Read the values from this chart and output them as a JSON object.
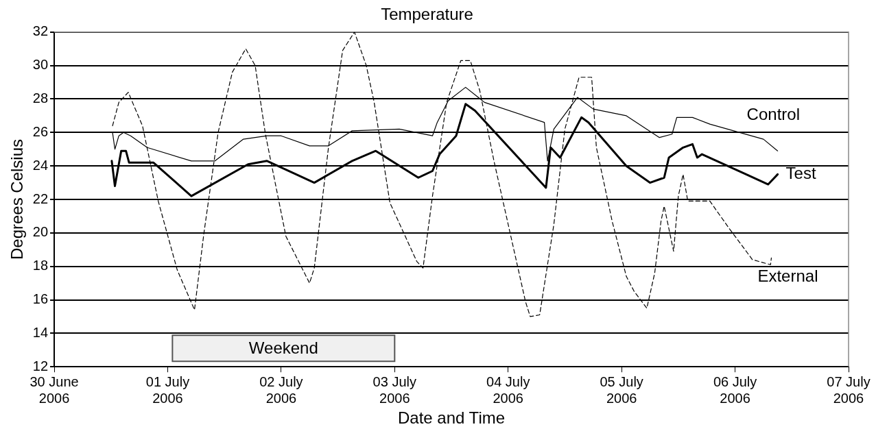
{
  "chart_data": {
    "type": "line",
    "title": "Temperature",
    "xlabel": "Date and Time",
    "ylabel": "Degrees Celsius",
    "xlim": [
      "2006-06-30",
      "2006-07-07"
    ],
    "xticks": [
      {
        "value": "2006-06-30",
        "label": "30 June 2006"
      },
      {
        "value": "2006-07-01",
        "label": "01 July 2006"
      },
      {
        "value": "2006-07-02",
        "label": "02 July 2006"
      },
      {
        "value": "2006-07-03",
        "label": "03 July 2006"
      },
      {
        "value": "2006-07-04",
        "label": "04 July 2006"
      },
      {
        "value": "2006-07-05",
        "label": "05 July 2006"
      },
      {
        "value": "2006-07-06",
        "label": "06 July 2006"
      },
      {
        "value": "2006-07-07",
        "label": "07 July 2006"
      }
    ],
    "ylim": [
      12,
      32
    ],
    "yticks": [
      12,
      14,
      16,
      18,
      20,
      22,
      24,
      26,
      28,
      30,
      32
    ],
    "grid": "y",
    "legend": false,
    "marker": "none",
    "bands": [
      {
        "axis": "x",
        "from": "2006-07-01T01:00",
        "to": "2006-07-03",
        "label": "Weekend",
        "color": "#f0f0f0"
      }
    ],
    "series": [
      {
        "name": "Control",
        "color": "#000000",
        "line_style": "solid",
        "x": [
          "2006-06-30T12:20",
          "2006-06-30T12:50",
          "2006-06-30T13:40",
          "2006-06-30T14:40",
          "2006-06-30T16:10",
          "2006-06-30T19:40",
          "2006-07-01T05:00",
          "2006-07-01T10:00",
          "2006-07-01T16:00",
          "2006-07-01T21:00",
          "2006-07-02T00:00",
          "2006-07-02T06:00",
          "2006-07-02T10:00",
          "2006-07-02T15:00",
          "2006-07-03T01:00",
          "2006-07-03T08:00",
          "2006-07-03T09:00",
          "2006-07-03T11:20",
          "2006-07-03T15:00",
          "2006-07-03T17:40",
          "2006-07-03T19:00",
          "2006-07-04T07:40",
          "2006-07-04T08:20",
          "2006-07-04T09:40",
          "2006-07-04T14:40",
          "2006-07-04T18:00",
          "2006-07-05T01:00",
          "2006-07-05T08:00",
          "2006-07-05T10:40",
          "2006-07-05T11:40",
          "2006-07-05T15:00",
          "2006-07-05T18:40",
          "2006-07-06T06:00",
          "2006-07-06T09:00"
        ],
        "values": [
          26.0,
          25.0,
          25.8,
          26.0,
          25.8,
          25.1,
          24.3,
          24.3,
          25.6,
          25.8,
          25.8,
          25.2,
          25.2,
          26.1,
          26.2,
          25.8,
          26.6,
          27.9,
          28.7,
          28.1,
          27.8,
          26.6,
          24.3,
          26.2,
          28.1,
          27.4,
          27.0,
          25.7,
          25.9,
          26.9,
          26.9,
          26.5,
          25.6,
          24.9
        ]
      },
      {
        "name": "Test",
        "color": "#000000",
        "line_style": "solid",
        "x": [
          "2006-06-30T12:10",
          "2006-06-30T12:50",
          "2006-06-30T14:10",
          "2006-06-30T15:10",
          "2006-06-30T15:50",
          "2006-06-30T21:00",
          "2006-07-01T05:00",
          "2006-07-01T17:00",
          "2006-07-01T21:00",
          "2006-07-02T07:00",
          "2006-07-02T15:00",
          "2006-07-02T20:00",
          "2006-07-03T05:00",
          "2006-07-03T08:00",
          "2006-07-03T09:30",
          "2006-07-03T13:00",
          "2006-07-03T15:00",
          "2006-07-03T17:00",
          "2006-07-04T08:00",
          "2006-07-04T09:00",
          "2006-07-04T11:00",
          "2006-07-04T15:30",
          "2006-07-04T17:00",
          "2006-07-05T01:00",
          "2006-07-05T06:00",
          "2006-07-05T09:00",
          "2006-07-05T10:00",
          "2006-07-05T13:00",
          "2006-07-05T15:00",
          "2006-07-05T16:00",
          "2006-07-05T17:00",
          "2006-07-06T07:00",
          "2006-07-06T09:00"
        ],
        "values": [
          24.3,
          22.8,
          24.9,
          24.9,
          24.2,
          24.2,
          22.2,
          24.1,
          24.3,
          23.0,
          24.3,
          24.9,
          23.3,
          23.7,
          24.7,
          25.8,
          27.7,
          27.3,
          22.7,
          25.1,
          24.5,
          26.9,
          26.6,
          24.0,
          23.0,
          23.3,
          24.5,
          25.1,
          25.3,
          24.5,
          24.7,
          22.9,
          23.5
        ]
      },
      {
        "name": "External",
        "color": "#000000",
        "line_style": "dashed",
        "x": [
          "2006-06-30T12:20",
          "2006-06-30T13:40",
          "2006-06-30T15:40",
          "2006-06-30T17:00",
          "2006-06-30T18:40",
          "2006-06-30T22:00",
          "2006-07-01T02:00",
          "2006-07-01T05:40",
          "2006-07-01T07:40",
          "2006-07-01T10:40",
          "2006-07-01T13:40",
          "2006-07-01T16:30",
          "2006-07-01T18:30",
          "2006-07-01T20:40",
          "2006-07-02T01:00",
          "2006-07-02T06:00",
          "2006-07-02T07:00",
          "2006-07-02T10:00",
          "2006-07-02T13:00",
          "2006-07-02T15:30",
          "2006-07-02T18:00",
          "2006-07-02T19:40",
          "2006-07-02T23:00",
          "2006-07-03T04:40",
          "2006-07-03T06:00",
          "2006-07-03T08:00",
          "2006-07-03T11:00",
          "2006-07-03T14:00",
          "2006-07-03T16:00",
          "2006-07-03T18:00",
          "2006-07-03T21:00",
          "2006-07-04T03:40",
          "2006-07-04T04:40",
          "2006-07-04T06:40",
          "2006-07-04T09:40",
          "2006-07-04T12:00",
          "2006-07-04T15:00",
          "2006-07-04T17:40",
          "2006-07-04T18:40",
          "2006-07-04T22:00",
          "2006-07-05T01:00",
          "2006-07-05T02:40",
          "2006-07-05T05:20",
          "2006-07-05T07:00",
          "2006-07-05T08:20",
          "2006-07-05T09:00",
          "2006-07-05T11:00",
          "2006-07-05T12:00",
          "2006-07-05T13:00",
          "2006-07-05T14:00",
          "2006-07-05T18:40",
          "2006-07-05T22:40",
          "2006-07-06T03:40",
          "2006-07-06T07:30",
          "2006-07-06T07:40"
        ],
        "values": [
          26.4,
          27.8,
          28.4,
          27.5,
          26.4,
          21.9,
          17.8,
          15.4,
          20.0,
          26.0,
          29.6,
          31.0,
          30.0,
          25.9,
          19.8,
          17.0,
          17.9,
          25.1,
          30.9,
          32.0,
          30.0,
          27.8,
          21.8,
          18.3,
          17.9,
          22.2,
          27.8,
          30.3,
          30.3,
          28.5,
          24.3,
          15.9,
          15.0,
          15.1,
          20.5,
          26.2,
          29.3,
          29.3,
          25.1,
          20.7,
          17.4,
          16.5,
          15.5,
          17.6,
          20.7,
          21.6,
          18.9,
          22.2,
          23.5,
          21.9,
          21.9,
          20.3,
          18.4,
          18.1,
          18.5
        ]
      }
    ]
  }
}
